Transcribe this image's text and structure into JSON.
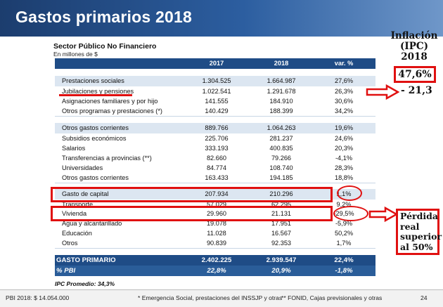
{
  "header": {
    "title": "Gastos primarios 2018"
  },
  "table": {
    "title": "Sector Público No Financiero",
    "subtitle": "En millones de $",
    "columns": [
      "2017",
      "2018",
      "var. %"
    ],
    "rows": [
      {
        "label": "Prestaciones sociales",
        "v2017": "1.304.525",
        "v2018": "1.664.987",
        "var": "27,6%"
      },
      {
        "label": "Jubilaciones y pensiones",
        "v2017": "1.022.541",
        "v2018": "1.291.678",
        "var": "26,3%"
      },
      {
        "label": "Asignaciones familiares y por hijo",
        "v2017": "141.555",
        "v2018": "184.910",
        "var": "30,6%"
      },
      {
        "label": "Otros programas y prestaciones (*)",
        "v2017": "140.429",
        "v2018": "188.399",
        "var": "34,2%"
      },
      {
        "label": "Otros gastos corrientes",
        "v2017": "889.766",
        "v2018": "1.064.263",
        "var": "19,6%"
      },
      {
        "label": "Subsidios económicos",
        "v2017": "225.706",
        "v2018": "281.237",
        "var": "24,6%"
      },
      {
        "label": "Salarios",
        "v2017": "333.193",
        "v2018": "400.835",
        "var": "20,3%"
      },
      {
        "label": "Transferencias a provincias (**)",
        "v2017": "82.660",
        "v2018": "79.266",
        "var": "-4,1%"
      },
      {
        "label": "Universidades",
        "v2017": "84.774",
        "v2018": "108.740",
        "var": "28,3%"
      },
      {
        "label": "Otros gastos corrientes",
        "v2017": "163.433",
        "v2018": "194.185",
        "var": "18,8%"
      },
      {
        "label": "Gasto de capital",
        "v2017": "207.934",
        "v2018": "210.296",
        "var": "1,1%"
      },
      {
        "label": "Transporte",
        "v2017": "57.029",
        "v2018": "62.295",
        "var": "9,2%"
      },
      {
        "label": "Vivienda",
        "v2017": "29.960",
        "v2018": "21.131",
        "var": "-29,5%"
      },
      {
        "label": "Agua y alcantarillado",
        "v2017": "19.078",
        "v2018": "17.951",
        "var": "-5,9%"
      },
      {
        "label": "Educación",
        "v2017": "11.028",
        "v2018": "16.567",
        "var": "50,2%"
      },
      {
        "label": "Otros",
        "v2017": "90.839",
        "v2018": "92.353",
        "var": "1,7%"
      }
    ],
    "total": {
      "label": "GASTO PRIMARIO",
      "v2017": "2.402.225",
      "v2018": "2.939.547",
      "var": "22,4%"
    },
    "pbi_row": {
      "label": "% PBI",
      "v2017": "22,8%",
      "v2018": "20,9%",
      "var": "-1,8%"
    },
    "ipc_note": "IPC Promedio: 34,3%"
  },
  "footer": {
    "pbi": "PBI 2018: $ 14.054.000",
    "note1": "* Emergencia Social, prestaciones del INSSJP y otras",
    "note2": "** FONID, Cajas previsionales y otras",
    "page": "24"
  },
  "annotations": {
    "inflation_label": [
      "Inflación",
      "(IPC)",
      "2018"
    ],
    "inflation_value": "47,6%",
    "jubilaciones_delta": "- 21,3",
    "perdida_text": [
      "Pérdida",
      "real",
      "superior",
      "al 50%"
    ],
    "accent_color": "#e01010",
    "header_color": "#1f4c86"
  }
}
